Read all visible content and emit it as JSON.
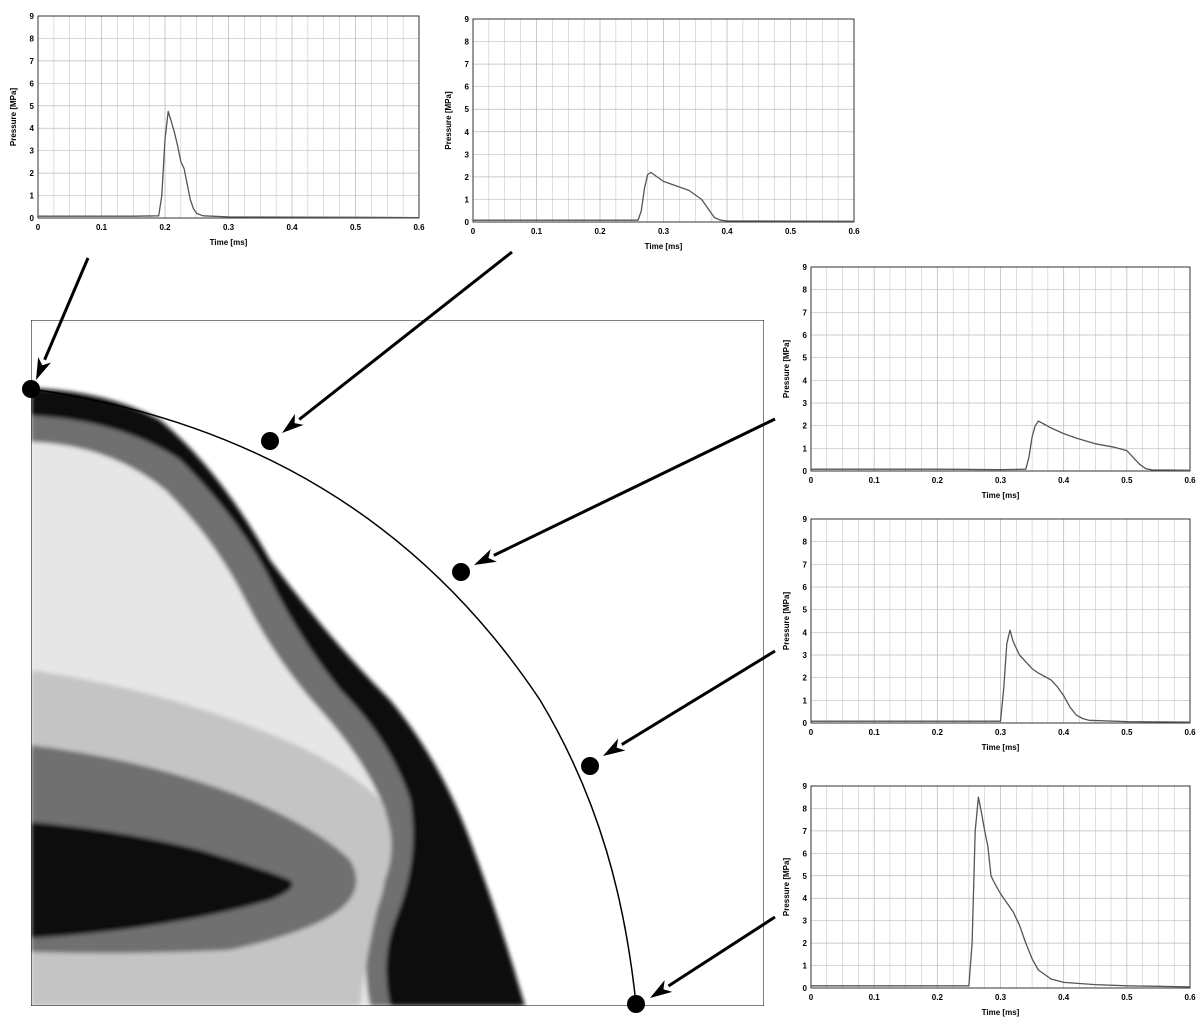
{
  "colors": {
    "trace": "#555555",
    "grid": "#bdbdbd",
    "axis": "#000000",
    "field_dark": "#0a0a0a",
    "field_mid": "#6f6f6f",
    "field_light": "#c4c4c4",
    "field_pale": "#e6e6e6"
  },
  "chart_data": [
    {
      "type": "line",
      "xlabel": "Time [ms]",
      "ylabel": "Pressure [MPa]",
      "xlim": [
        0,
        0.6
      ],
      "ylim": [
        0,
        9
      ],
      "xticks": [
        "0",
        "0.1",
        "0.2",
        "0.3",
        "0.4",
        "0.5",
        "0.6"
      ],
      "yticks": [
        "0",
        "1",
        "2",
        "3",
        "4",
        "5",
        "6",
        "7",
        "8",
        "9"
      ],
      "x": [
        0,
        0.05,
        0.1,
        0.15,
        0.19,
        0.195,
        0.2,
        0.205,
        0.21,
        0.215,
        0.22,
        0.225,
        0.23,
        0.235,
        0.24,
        0.245,
        0.25,
        0.26,
        0.3,
        0.4,
        0.5,
        0.6
      ],
      "y": [
        0.08,
        0.08,
        0.08,
        0.08,
        0.1,
        1.0,
        3.5,
        4.75,
        4.3,
        3.8,
        3.2,
        2.5,
        2.2,
        1.5,
        0.8,
        0.4,
        0.2,
        0.1,
        0.05,
        0.04,
        0.03,
        0.02
      ]
    },
    {
      "type": "line",
      "xlabel": "Time [ms]",
      "ylabel": "Pressure [MPa]",
      "xlim": [
        0,
        0.6
      ],
      "ylim": [
        0,
        9
      ],
      "xticks": [
        "0",
        "0.1",
        "0.2",
        "0.3",
        "0.4",
        "0.5",
        "0.6"
      ],
      "yticks": [
        "0",
        "1",
        "2",
        "3",
        "4",
        "5",
        "6",
        "7",
        "8",
        "9"
      ],
      "x": [
        0,
        0.1,
        0.2,
        0.26,
        0.265,
        0.27,
        0.275,
        0.28,
        0.29,
        0.3,
        0.32,
        0.34,
        0.35,
        0.36,
        0.37,
        0.38,
        0.39,
        0.4,
        0.5,
        0.6
      ],
      "y": [
        0.08,
        0.08,
        0.08,
        0.08,
        0.5,
        1.5,
        2.1,
        2.2,
        2.0,
        1.8,
        1.6,
        1.4,
        1.2,
        1.0,
        0.6,
        0.2,
        0.08,
        0.05,
        0.04,
        0.03
      ]
    },
    {
      "type": "line",
      "xlabel": "Time [ms]",
      "ylabel": "Pressure [MPa]",
      "xlim": [
        0,
        0.6
      ],
      "ylim": [
        0,
        9
      ],
      "xticks": [
        "0",
        "0.1",
        "0.2",
        "0.3",
        "0.4",
        "0.5",
        "0.6"
      ],
      "yticks": [
        "0",
        "1",
        "2",
        "3",
        "4",
        "5",
        "6",
        "7",
        "8",
        "9"
      ],
      "x": [
        0,
        0.1,
        0.2,
        0.3,
        0.34,
        0.345,
        0.35,
        0.355,
        0.36,
        0.37,
        0.38,
        0.4,
        0.42,
        0.45,
        0.48,
        0.5,
        0.51,
        0.52,
        0.53,
        0.54,
        0.6
      ],
      "y": [
        0.08,
        0.08,
        0.08,
        0.06,
        0.08,
        0.6,
        1.5,
        2.0,
        2.2,
        2.05,
        1.9,
        1.65,
        1.45,
        1.2,
        1.05,
        0.9,
        0.6,
        0.3,
        0.1,
        0.05,
        0.03
      ]
    },
    {
      "type": "line",
      "xlabel": "Time [ms]",
      "ylabel": "Pressure [MPa]",
      "xlim": [
        0,
        0.6
      ],
      "ylim": [
        0,
        9
      ],
      "xticks": [
        "0",
        "0.1",
        "0.2",
        "0.3",
        "0.4",
        "0.5",
        "0.6"
      ],
      "yticks": [
        "0",
        "1",
        "2",
        "3",
        "4",
        "5",
        "6",
        "7",
        "8",
        "9"
      ],
      "x": [
        0,
        0.1,
        0.2,
        0.3,
        0.305,
        0.31,
        0.315,
        0.32,
        0.33,
        0.34,
        0.35,
        0.36,
        0.37,
        0.38,
        0.39,
        0.4,
        0.41,
        0.42,
        0.43,
        0.44,
        0.5,
        0.6
      ],
      "y": [
        0.08,
        0.08,
        0.08,
        0.08,
        1.5,
        3.5,
        4.1,
        3.6,
        3.0,
        2.7,
        2.4,
        2.2,
        2.05,
        1.9,
        1.6,
        1.2,
        0.7,
        0.35,
        0.2,
        0.12,
        0.06,
        0.04
      ]
    },
    {
      "type": "line",
      "xlabel": "Time [ms]",
      "ylabel": "Pressure [MPa]",
      "xlim": [
        0,
        0.6
      ],
      "ylim": [
        0,
        9
      ],
      "xticks": [
        "0",
        "0.1",
        "0.2",
        "0.3",
        "0.4",
        "0.5",
        "0.6"
      ],
      "yticks": [
        "0",
        "1",
        "2",
        "3",
        "4",
        "5",
        "6",
        "7",
        "8",
        "9"
      ],
      "x": [
        0,
        0.1,
        0.2,
        0.25,
        0.255,
        0.26,
        0.265,
        0.27,
        0.275,
        0.28,
        0.285,
        0.29,
        0.3,
        0.31,
        0.32,
        0.33,
        0.34,
        0.35,
        0.36,
        0.38,
        0.4,
        0.45,
        0.5,
        0.6
      ],
      "y": [
        0.1,
        0.1,
        0.1,
        0.1,
        2.0,
        7.0,
        8.5,
        7.8,
        7.0,
        6.3,
        5.0,
        4.7,
        4.2,
        3.8,
        3.4,
        2.8,
        2.0,
        1.3,
        0.8,
        0.4,
        0.25,
        0.15,
        0.1,
        0.05
      ]
    }
  ]
}
